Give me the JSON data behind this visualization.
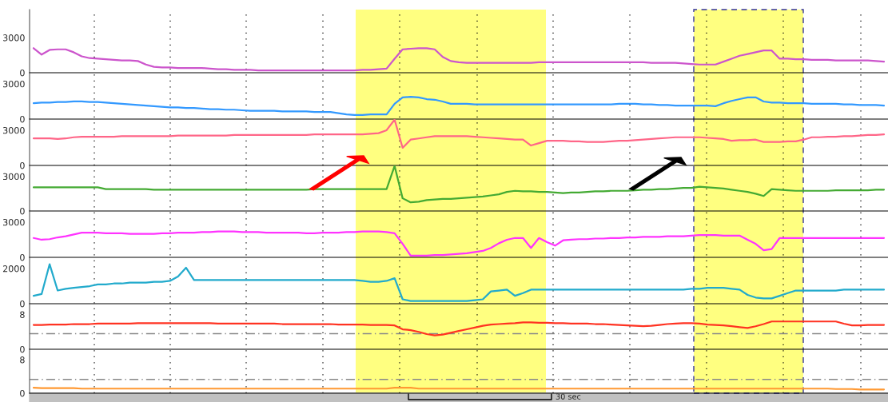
{
  "chart_data": [
    {
      "type": "line",
      "categories": [
        null,
        null,
        null,
        null,
        null,
        null,
        null,
        null,
        null,
        null,
        null,
        null,
        null,
        null,
        null,
        null,
        null,
        null,
        null,
        null,
        null,
        null,
        null,
        null,
        null,
        null,
        null,
        null,
        null,
        null,
        null,
        null,
        null,
        null,
        null,
        null,
        null,
        null,
        null,
        null,
        null,
        null,
        null,
        null,
        null,
        null,
        null,
        null,
        null,
        null,
        null,
        null,
        null,
        null,
        null,
        null,
        null,
        null,
        null,
        null,
        null,
        null,
        null,
        null,
        null,
        null,
        null,
        null,
        null,
        null,
        null,
        null,
        null,
        null,
        null,
        null,
        null,
        null,
        null,
        null,
        null,
        null,
        null,
        null,
        null,
        null,
        null,
        null,
        null,
        null,
        null,
        null,
        null,
        null,
        null,
        null,
        null,
        null,
        null,
        null,
        null,
        null,
        null,
        null,
        null,
        null,
        null
      ],
      "series": [
        {
          "color": "#cc55cc",
          "values": [
            2100,
            1550,
            1950,
            2000,
            2000,
            1750,
            1400,
            1250,
            1200,
            1150,
            1100,
            1050,
            1050,
            1000,
            700,
            500,
            450,
            450,
            400,
            400,
            400,
            400,
            350,
            300,
            300,
            250,
            250,
            250,
            200,
            200,
            200,
            200,
            200,
            200,
            200,
            200,
            200,
            200,
            200,
            200,
            200,
            250,
            250,
            300,
            350,
            1200,
            2000,
            2050,
            2100,
            2100,
            2000,
            1350,
            1000,
            900,
            850,
            850,
            850,
            850,
            850,
            850,
            850,
            850,
            850,
            900,
            900,
            900,
            900,
            900,
            900,
            900,
            900,
            900,
            900,
            900,
            900,
            900,
            900,
            850,
            850,
            850,
            850,
            800,
            750,
            700,
            700,
            700,
            950,
            1200,
            1450,
            1600,
            1750,
            1900,
            1900,
            1200,
            1200,
            1150,
            1150,
            1100,
            1100,
            1100,
            1050,
            1050,
            1050,
            1050,
            1050,
            1000,
            950
          ]
        }
      ],
      "ylim": [
        0,
        5400
      ],
      "yticks": [
        0,
        3000
      ],
      "tick_labels": "y"
    },
    {
      "type": "line",
      "categories": [
        null,
        null,
        null,
        null,
        null,
        null,
        null,
        null,
        null,
        null,
        null,
        null,
        null,
        null,
        null,
        null,
        null,
        null,
        null,
        null,
        null,
        null,
        null,
        null,
        null,
        null,
        null,
        null,
        null,
        null,
        null,
        null,
        null,
        null,
        null,
        null,
        null,
        null,
        null,
        null,
        null,
        null,
        null,
        null,
        null,
        null,
        null,
        null,
        null,
        null,
        null,
        null,
        null,
        null,
        null,
        null,
        null,
        null,
        null,
        null,
        null,
        null,
        null,
        null,
        null,
        null,
        null,
        null,
        null,
        null,
        null,
        null,
        null,
        null,
        null,
        null,
        null,
        null,
        null,
        null,
        null,
        null,
        null,
        null,
        null,
        null,
        null,
        null,
        null,
        null,
        null,
        null,
        null,
        null,
        null,
        null,
        null,
        null,
        null,
        null,
        null,
        null,
        null,
        null,
        null,
        null,
        null
      ],
      "series": [
        {
          "color": "#3399ff",
          "values": [
            1350,
            1400,
            1400,
            1450,
            1450,
            1500,
            1500,
            1450,
            1450,
            1400,
            1350,
            1300,
            1250,
            1200,
            1150,
            1100,
            1050,
            1000,
            1000,
            950,
            950,
            900,
            850,
            850,
            800,
            800,
            750,
            700,
            700,
            700,
            700,
            650,
            650,
            650,
            650,
            600,
            600,
            600,
            500,
            400,
            350,
            350,
            400,
            400,
            400,
            1300,
            1850,
            1900,
            1850,
            1700,
            1650,
            1500,
            1300,
            1300,
            1300,
            1250,
            1250,
            1250,
            1250,
            1250,
            1250,
            1250,
            1250,
            1250,
            1250,
            1250,
            1250,
            1250,
            1250,
            1250,
            1250,
            1250,
            1250,
            1300,
            1300,
            1300,
            1250,
            1250,
            1200,
            1200,
            1150,
            1150,
            1150,
            1150,
            1150,
            1100,
            1350,
            1550,
            1700,
            1850,
            1850,
            1500,
            1400,
            1400,
            1350,
            1350,
            1350,
            1300,
            1300,
            1300,
            1300,
            1250,
            1250,
            1200,
            1200,
            1200,
            1150
          ]
        }
      ],
      "ylim": [
        0,
        3950
      ],
      "yticks": [
        0,
        3000
      ],
      "tick_labels": "y"
    },
    {
      "type": "line",
      "categories": [
        null,
        null,
        null,
        null,
        null,
        null,
        null,
        null,
        null,
        null,
        null,
        null,
        null,
        null,
        null,
        null,
        null,
        null,
        null,
        null,
        null,
        null,
        null,
        null,
        null,
        null,
        null,
        null,
        null,
        null,
        null,
        null,
        null,
        null,
        null,
        null,
        null,
        null,
        null,
        null,
        null,
        null,
        null,
        null,
        null,
        null,
        null,
        null,
        null,
        null,
        null,
        null,
        null,
        null,
        null,
        null,
        null,
        null,
        null,
        null,
        null,
        null,
        null,
        null,
        null,
        null,
        null,
        null,
        null,
        null,
        null,
        null,
        null,
        null,
        null,
        null,
        null,
        null,
        null,
        null,
        null,
        null,
        null,
        null,
        null,
        null,
        null,
        null,
        null,
        null,
        null,
        null,
        null,
        null,
        null,
        null,
        null,
        null,
        null,
        null,
        null,
        null,
        null,
        null,
        null,
        null,
        null
      ],
      "series": [
        {
          "color": "#ff6688",
          "values": [
            2300,
            2300,
            2300,
            2250,
            2300,
            2400,
            2450,
            2450,
            2450,
            2450,
            2450,
            2500,
            2500,
            2500,
            2500,
            2500,
            2500,
            2500,
            2550,
            2550,
            2550,
            2550,
            2550,
            2550,
            2550,
            2600,
            2600,
            2600,
            2600,
            2600,
            2600,
            2600,
            2600,
            2600,
            2600,
            2650,
            2650,
            2650,
            2650,
            2650,
            2650,
            2650,
            2700,
            2750,
            3000,
            3900,
            1500,
            2200,
            2300,
            2400,
            2500,
            2500,
            2500,
            2500,
            2500,
            2450,
            2400,
            2350,
            2300,
            2250,
            2200,
            2200,
            1700,
            1900,
            2100,
            2100,
            2100,
            2050,
            2050,
            2000,
            2000,
            2000,
            2050,
            2100,
            2100,
            2150,
            2200,
            2250,
            2300,
            2350,
            2400,
            2400,
            2400,
            2400,
            2350,
            2300,
            2250,
            2100,
            2150,
            2150,
            2200,
            2000,
            2000,
            2000,
            2050,
            2050,
            2200,
            2400,
            2400,
            2450,
            2450,
            2500,
            2500,
            2550,
            2600,
            2600,
            2650
          ]
        }
      ],
      "ylim": [
        0,
        3950
      ],
      "yticks": [
        0,
        3000
      ],
      "tick_labels": "y"
    },
    {
      "type": "line",
      "categories": [
        null,
        null,
        null,
        null,
        null,
        null,
        null,
        null,
        null,
        null,
        null,
        null,
        null,
        null,
        null,
        null,
        null,
        null,
        null,
        null,
        null,
        null,
        null,
        null,
        null,
        null,
        null,
        null,
        null,
        null,
        null,
        null,
        null,
        null,
        null,
        null,
        null,
        null,
        null,
        null,
        null,
        null,
        null,
        null,
        null,
        null,
        null,
        null,
        null,
        null,
        null,
        null,
        null,
        null,
        null,
        null,
        null,
        null,
        null,
        null,
        null,
        null,
        null,
        null,
        null,
        null,
        null,
        null,
        null,
        null,
        null,
        null,
        null,
        null,
        null,
        null,
        null,
        null,
        null,
        null,
        null,
        null,
        null,
        null,
        null,
        null,
        null,
        null,
        null,
        null,
        null,
        null,
        null,
        null,
        null,
        null,
        null,
        null,
        null,
        null,
        null,
        null,
        null,
        null,
        null,
        null,
        null
      ],
      "series": [
        {
          "color": "#44aa33",
          "values": [
            2050,
            2050,
            2050,
            2050,
            2050,
            2050,
            2050,
            2050,
            2050,
            1900,
            1900,
            1900,
            1900,
            1900,
            1900,
            1850,
            1850,
            1850,
            1850,
            1850,
            1850,
            1850,
            1850,
            1850,
            1850,
            1850,
            1850,
            1850,
            1850,
            1850,
            1850,
            1850,
            1850,
            1850,
            1850,
            1900,
            1900,
            1900,
            1900,
            1900,
            1900,
            1900,
            1900,
            1900,
            1900,
            3900,
            1100,
            750,
            800,
            950,
            1000,
            1050,
            1050,
            1100,
            1150,
            1200,
            1250,
            1350,
            1450,
            1650,
            1750,
            1700,
            1700,
            1650,
            1650,
            1600,
            1550,
            1600,
            1600,
            1650,
            1700,
            1700,
            1750,
            1750,
            1750,
            1800,
            1850,
            1850,
            1900,
            1900,
            1950,
            2000,
            2000,
            2100,
            2050,
            2000,
            1950,
            1850,
            1750,
            1650,
            1500,
            1300,
            1900,
            1850,
            1800,
            1750,
            1750,
            1750,
            1750,
            1750,
            1800,
            1800,
            1800,
            1800,
            1800,
            1850,
            1850
          ]
        }
      ],
      "ylim": [
        0,
        3950
      ],
      "yticks": [
        0,
        3000
      ],
      "tick_labels": "y"
    },
    {
      "type": "line",
      "categories": [
        null,
        null,
        null,
        null,
        null,
        null,
        null,
        null,
        null,
        null,
        null,
        null,
        null,
        null,
        null,
        null,
        null,
        null,
        null,
        null,
        null,
        null,
        null,
        null,
        null,
        null,
        null,
        null,
        null,
        null,
        null,
        null,
        null,
        null,
        null,
        null,
        null,
        null,
        null,
        null,
        null,
        null,
        null,
        null,
        null,
        null,
        null,
        null,
        null,
        null,
        null,
        null,
        null,
        null,
        null,
        null,
        null,
        null,
        null,
        null,
        null,
        null,
        null,
        null,
        null,
        null,
        null,
        null,
        null,
        null,
        null,
        null,
        null,
        null,
        null,
        null,
        null,
        null,
        null,
        null,
        null,
        null,
        null,
        null,
        null,
        null,
        null,
        null,
        null,
        null,
        null,
        null,
        null,
        null,
        null,
        null,
        null,
        null,
        null,
        null,
        null,
        null,
        null,
        null,
        null,
        null,
        null
      ],
      "series": [
        {
          "color": "#ff33ff",
          "values": [
            1650,
            1500,
            1550,
            1700,
            1800,
            1950,
            2100,
            2100,
            2100,
            2050,
            2050,
            2050,
            2000,
            2000,
            2000,
            2000,
            2050,
            2050,
            2100,
            2100,
            2100,
            2150,
            2150,
            2200,
            2200,
            2200,
            2150,
            2150,
            2150,
            2100,
            2100,
            2100,
            2100,
            2100,
            2050,
            2050,
            2100,
            2100,
            2100,
            2150,
            2150,
            2200,
            2200,
            2200,
            2150,
            2050,
            1150,
            150,
            150,
            150,
            200,
            200,
            250,
            300,
            350,
            450,
            550,
            800,
            1200,
            1500,
            1650,
            1650,
            800,
            1650,
            1300,
            1000,
            1450,
            1500,
            1550,
            1550,
            1600,
            1600,
            1650,
            1650,
            1700,
            1700,
            1750,
            1750,
            1750,
            1800,
            1800,
            1800,
            1850,
            1900,
            1900,
            1900,
            1850,
            1850,
            1850,
            1500,
            1150,
            600,
            700,
            1650,
            1650,
            1650,
            1650,
            1650,
            1650,
            1650,
            1650,
            1650,
            1650,
            1650,
            1650,
            1650,
            1650
          ]
        }
      ],
      "ylim": [
        0,
        3950
      ],
      "yticks": [
        0,
        3000
      ],
      "tick_labels": "y"
    },
    {
      "type": "line",
      "categories": [
        null,
        null,
        null,
        null,
        null,
        null,
        null,
        null,
        null,
        null,
        null,
        null,
        null,
        null,
        null,
        null,
        null,
        null,
        null,
        null,
        null,
        null,
        null,
        null,
        null,
        null,
        null,
        null,
        null,
        null,
        null,
        null,
        null,
        null,
        null,
        null,
        null,
        null,
        null,
        null,
        null,
        null,
        null,
        null,
        null,
        null,
        null,
        null,
        null,
        null,
        null,
        null,
        null,
        null,
        null,
        null,
        null,
        null,
        null,
        null,
        null,
        null,
        null,
        null,
        null,
        null,
        null,
        null,
        null,
        null,
        null,
        null,
        null,
        null,
        null,
        null,
        null,
        null,
        null,
        null,
        null,
        null,
        null,
        null,
        null,
        null,
        null,
        null,
        null,
        null,
        null,
        null,
        null,
        null,
        null,
        null,
        null,
        null,
        null,
        null,
        null,
        null,
        null,
        null,
        null,
        null,
        null
      ],
      "series": [
        {
          "color": "#22aacc",
          "values": [
            450,
            550,
            2250,
            750,
            850,
            900,
            950,
            1000,
            1100,
            1100,
            1150,
            1150,
            1200,
            1200,
            1200,
            1250,
            1250,
            1300,
            1550,
            2050,
            1350,
            1350,
            1350,
            1350,
            1350,
            1350,
            1350,
            1350,
            1350,
            1350,
            1350,
            1350,
            1350,
            1350,
            1350,
            1350,
            1350,
            1350,
            1350,
            1350,
            1350,
            1300,
            1250,
            1250,
            1300,
            1450,
            250,
            150,
            150,
            150,
            150,
            150,
            150,
            150,
            150,
            200,
            250,
            700,
            750,
            800,
            450,
            600,
            800,
            800,
            800,
            800,
            800,
            800,
            800,
            800,
            800,
            800,
            800,
            800,
            800,
            800,
            800,
            800,
            800,
            800,
            800,
            800,
            850,
            850,
            900,
            900,
            900,
            850,
            800,
            500,
            350,
            300,
            300,
            450,
            600,
            750,
            750,
            750,
            750,
            750,
            750,
            800,
            800,
            800,
            800,
            800,
            800
          ]
        }
      ],
      "ylim": [
        0,
        2640
      ],
      "yticks": [
        0,
        2000
      ],
      "tick_labels": "y"
    },
    {
      "type": "line",
      "categories": [
        null,
        null,
        null,
        null,
        null,
        null,
        null,
        null,
        null,
        null,
        null,
        null,
        null,
        null,
        null,
        null,
        null,
        null,
        null,
        null,
        null,
        null,
        null,
        null,
        null,
        null,
        null,
        null,
        null,
        null,
        null,
        null,
        null,
        null,
        null,
        null,
        null,
        null,
        null,
        null,
        null,
        null,
        null,
        null,
        null,
        null,
        null,
        null,
        null,
        null,
        null,
        null,
        null,
        null,
        null,
        null,
        null,
        null,
        null,
        null,
        null,
        null,
        null,
        null,
        null,
        null,
        null,
        null,
        null,
        null,
        null,
        null,
        null,
        null,
        null,
        null,
        null,
        null,
        null,
        null,
        null,
        null,
        null,
        null,
        null,
        null,
        null,
        null,
        null,
        null,
        null,
        null,
        null,
        null,
        null,
        null,
        null,
        null,
        null,
        null,
        null,
        null,
        null,
        null,
        null,
        null,
        null
      ],
      "series": [
        {
          "color": "#ff3322",
          "values": [
            5.6,
            5.6,
            5.7,
            5.7,
            5.7,
            5.8,
            5.8,
            5.8,
            5.9,
            5.9,
            5.9,
            5.9,
            5.9,
            6.0,
            6.0,
            6.0,
            6.0,
            6.0,
            6.0,
            6.0,
            6.0,
            6.0,
            6.0,
            5.9,
            5.9,
            5.9,
            5.9,
            5.9,
            5.9,
            5.9,
            5.9,
            5.8,
            5.8,
            5.8,
            5.8,
            5.8,
            5.8,
            5.8,
            5.7,
            5.7,
            5.7,
            5.7,
            5.6,
            5.6,
            5.6,
            5.5,
            4.6,
            4.4,
            4.0,
            3.5,
            3.2,
            3.4,
            3.8,
            4.2,
            4.6,
            5.0,
            5.4,
            5.7,
            5.8,
            5.9,
            6.0,
            6.2,
            6.2,
            6.1,
            6.1,
            6.0,
            6.0,
            5.9,
            5.9,
            5.9,
            5.8,
            5.8,
            5.7,
            5.6,
            5.5,
            5.4,
            5.3,
            5.4,
            5.6,
            5.8,
            5.9,
            6.0,
            6.0,
            5.9,
            5.7,
            5.6,
            5.5,
            5.3,
            5.1,
            4.9,
            5.3,
            5.8,
            6.4,
            6.4,
            6.4,
            6.4,
            6.4,
            6.4,
            6.4,
            6.4,
            6.4,
            5.9,
            5.5,
            5.5,
            5.6,
            5.6,
            5.6
          ]
        }
      ],
      "ylim": [
        0,
        10.5
      ],
      "yticks": [
        0,
        8
      ],
      "tick_labels": "y",
      "ref_lines": [
        {
          "axis": "y",
          "value": 3.6,
          "color": "#888888",
          "line_style": "dashed"
        }
      ]
    },
    {
      "type": "line",
      "categories": [
        null,
        null,
        null,
        null,
        null,
        null,
        null,
        null,
        null,
        null,
        null,
        null,
        null,
        null,
        null,
        null,
        null,
        null,
        null,
        null,
        null,
        null,
        null,
        null,
        null,
        null,
        null,
        null,
        null,
        null,
        null,
        null,
        null,
        null,
        null,
        null,
        null,
        null,
        null,
        null,
        null,
        null,
        null,
        null,
        null,
        null,
        null,
        null,
        null,
        null,
        null,
        null,
        null,
        null,
        null,
        null,
        null,
        null,
        null,
        null,
        null,
        null,
        null,
        null,
        null,
        null,
        null,
        null,
        null,
        null,
        null,
        null,
        null,
        null,
        null,
        null,
        null,
        null,
        null,
        null,
        null,
        null,
        null,
        null,
        null,
        null,
        null,
        null,
        null,
        null,
        null,
        null,
        null,
        null,
        null,
        null,
        null,
        null,
        null,
        null,
        null,
        null,
        null,
        null,
        null,
        null,
        null
      ],
      "series": [
        {
          "color": "#ff9933",
          "values": [
            1.3,
            1.2,
            1.2,
            1.2,
            1.2,
            1.2,
            1.1,
            1.1,
            1.1,
            1.1,
            1.1,
            1.1,
            1.1,
            1.1,
            1.1,
            1.1,
            1.1,
            1.1,
            1.1,
            1.1,
            1.1,
            1.1,
            1.1,
            1.1,
            1.1,
            1.1,
            1.1,
            1.1,
            1.1,
            1.1,
            1.1,
            1.1,
            1.1,
            1.1,
            1.1,
            1.1,
            1.1,
            1.1,
            1.1,
            1.1,
            1.1,
            1.1,
            1.1,
            1.1,
            1.1,
            1.3,
            1.3,
            1.3,
            1.1,
            1.1,
            1.1,
            1.1,
            1.1,
            1.1,
            1.1,
            1.1,
            1.1,
            1.1,
            1.1,
            1.1,
            1.1,
            1.1,
            1.1,
            1.1,
            1.1,
            1.1,
            1.1,
            1.1,
            1.1,
            1.1,
            1.1,
            1.1,
            1.1,
            1.1,
            1.1,
            1.1,
            1.1,
            1.1,
            1.1,
            1.1,
            1.1,
            1.1,
            1.1,
            1.1,
            1.1,
            1.1,
            1.1,
            1.1,
            1.1,
            1.1,
            1.1,
            1.1,
            1.1,
            1.1,
            1.1,
            1.1,
            1.1,
            1.1,
            1.1,
            1.1,
            1.0,
            1.0,
            1.0,
            0.9,
            0.9,
            0.9,
            0.9
          ]
        }
      ],
      "ylim": [
        0,
        10.5
      ],
      "yticks": [
        0,
        8
      ],
      "tick_labels": "y",
      "ref_lines": [
        {
          "axis": "y",
          "value": 3.3,
          "color": "#888888",
          "line_style": "dashed"
        }
      ],
      "annotations": [
        "30 sec"
      ]
    }
  ]
}
